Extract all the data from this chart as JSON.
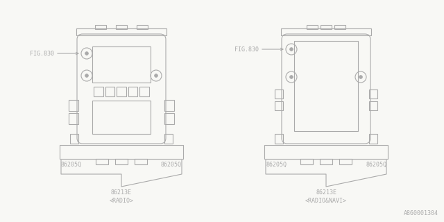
{
  "bg_color": "#f8f8f5",
  "line_color": "#aaaaaa",
  "text_color": "#aaaaaa",
  "fig_width": 6.4,
  "fig_height": 3.2,
  "dpi": 100,
  "left_label_fig": "FIG.830",
  "right_label_fig": "FIG.830",
  "left_part1_l": "86205Q",
  "left_part1_r": "86205Q",
  "left_part2": "86213E",
  "left_sub": "<RADIO>",
  "right_part1_l": "86205Q",
  "right_part1_r": "86205Q",
  "right_part2": "86213E",
  "right_sub": "<RADIO&NAVI>",
  "watermark": "A860001304"
}
